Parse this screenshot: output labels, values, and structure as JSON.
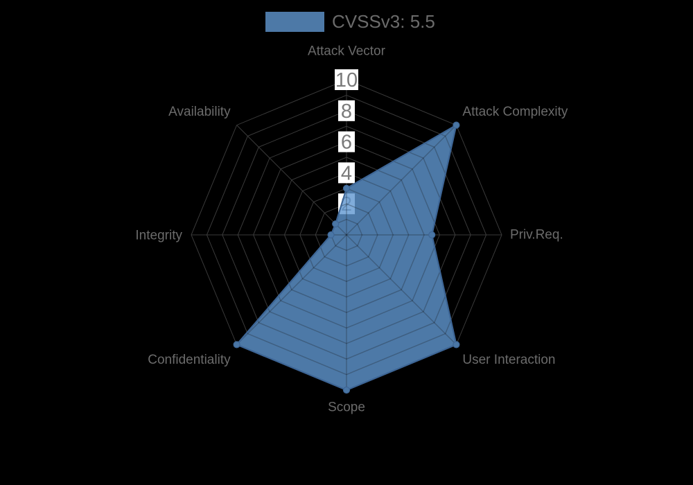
{
  "legend": {
    "label": "CVSSv3: 5.5",
    "swatch_color": "#4d79a7"
  },
  "chart_data": {
    "type": "radar",
    "title": "CVSSv3: 5.5",
    "categories": [
      "Attack Vector",
      "Attack Complexity",
      "Priv.Req.",
      "User Interaction",
      "Scope",
      "Confidentiality",
      "Integrity",
      "Availability"
    ],
    "series": [
      {
        "name": "CVSSv3: 5.5",
        "values": [
          3,
          10,
          5.5,
          10,
          10,
          10,
          1,
          1
        ]
      }
    ],
    "ticks": [
      2,
      4,
      6,
      8,
      10
    ],
    "rmax": 10,
    "ring_count": 10,
    "rotation_note": "first category at top, clockwise every 45 degrees",
    "legend_position": "top-center",
    "grid": true,
    "colors": {
      "background": "#000000",
      "series_fill": "#6097d1",
      "series_fill_opacity": 0.8,
      "series_stroke": "#3d6595",
      "marker_fill": "#4a76a5",
      "grid_line": "#3a3a3a",
      "grid_line_over_fill": "rgba(0,0,0,0.28)",
      "axis_label": "#6b6b6b",
      "tick_text": "#7a7a7a",
      "tick_box": "#ffffff"
    }
  }
}
